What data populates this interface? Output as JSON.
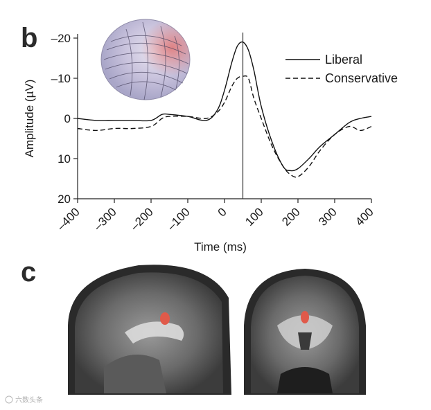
{
  "panels": {
    "b_letter": "b",
    "c_letter": "c"
  },
  "chart_data": {
    "type": "line",
    "title": "",
    "xlabel": "Time (ms)",
    "ylabel": "Amplitude (µV)",
    "xlim": [
      -400,
      400
    ],
    "ylim": [
      20,
      -20
    ],
    "y_axis_inverted": true,
    "xticks": [
      -400,
      -300,
      -200,
      -100,
      0,
      100,
      200,
      300,
      400
    ],
    "xtick_labels": [
      "–400",
      "–300",
      "–200",
      "–100",
      "0",
      "100",
      "200",
      "300",
      "400"
    ],
    "yticks": [
      -20,
      -10,
      0,
      10,
      20
    ],
    "ytick_labels": [
      "–20",
      "–10",
      "0",
      "10",
      "20"
    ],
    "vertical_marker_x": 50,
    "legend_position": "top-right",
    "grid": false,
    "series": [
      {
        "name": "Liberal",
        "style": "solid",
        "x": [
          -400,
          -350,
          -300,
          -250,
          -200,
          -170,
          -150,
          -100,
          -50,
          -20,
          0,
          20,
          35,
          50,
          65,
          80,
          100,
          130,
          160,
          180,
          200,
          230,
          260,
          300,
          340,
          370,
          400
        ],
        "y": [
          0,
          0.5,
          0.5,
          0.5,
          0.5,
          -1,
          -1,
          -0.5,
          0.5,
          -2,
          -7,
          -14,
          -18,
          -19,
          -17,
          -12,
          -3,
          6,
          12,
          13,
          12.5,
          10,
          7,
          4,
          1,
          0,
          -0.5
        ]
      },
      {
        "name": "Conservative",
        "style": "dashed",
        "x": [
          -400,
          -350,
          -300,
          -250,
          -200,
          -170,
          -150,
          -100,
          -50,
          -20,
          0,
          20,
          35,
          50,
          65,
          80,
          100,
          130,
          160,
          180,
          200,
          230,
          260,
          300,
          340,
          370,
          400
        ],
        "y": [
          2.5,
          3,
          2.5,
          2.5,
          2,
          0,
          -0.5,
          -0.5,
          0,
          -1.5,
          -4,
          -8,
          -10,
          -10.5,
          -10,
          -5,
          0,
          7,
          12,
          14,
          14.5,
          12,
          8,
          4,
          2,
          3,
          2
        ]
      }
    ]
  },
  "watermark": "六数头条"
}
